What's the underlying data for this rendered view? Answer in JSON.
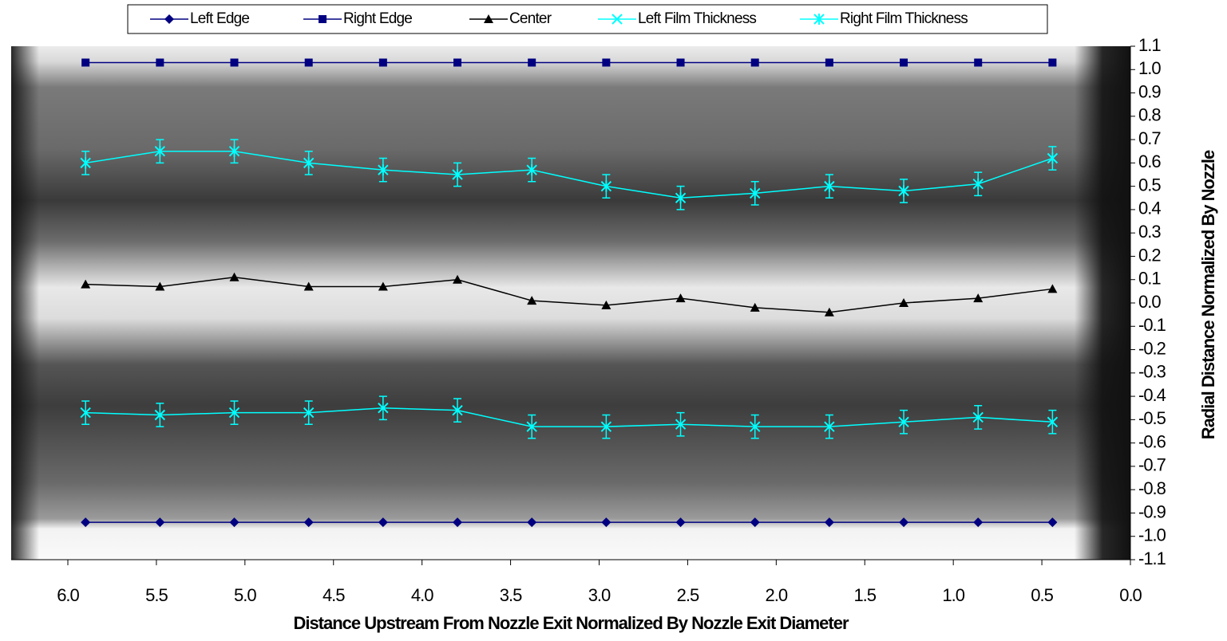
{
  "chart_data": {
    "type": "line",
    "x_label": "Distance Upstream From Nozzle Exit Normalized By Nozzle Exit Diameter",
    "y_label": "Radial Distance Normalized By Nozzle",
    "x": [
      5.9,
      5.48,
      5.06,
      4.64,
      4.22,
      3.8,
      3.38,
      2.96,
      2.54,
      2.12,
      1.7,
      1.28,
      0.86,
      0.44
    ],
    "series": [
      {
        "name": "Left Edge",
        "color": "#000080",
        "marker": "diamond",
        "values": [
          -0.94,
          -0.94,
          -0.94,
          -0.94,
          -0.94,
          -0.94,
          -0.94,
          -0.94,
          -0.94,
          -0.94,
          -0.94,
          -0.94,
          -0.94,
          -0.94
        ]
      },
      {
        "name": "Right Edge",
        "color": "#000080",
        "marker": "square",
        "values": [
          1.03,
          1.03,
          1.03,
          1.03,
          1.03,
          1.03,
          1.03,
          1.03,
          1.03,
          1.03,
          1.03,
          1.03,
          1.03,
          1.03
        ]
      },
      {
        "name": "Center",
        "color": "#000000",
        "marker": "triangle",
        "values": [
          0.08,
          0.07,
          0.11,
          0.07,
          0.07,
          0.1,
          0.01,
          -0.01,
          0.02,
          -0.02,
          -0.04,
          0.0,
          0.02,
          0.06
        ]
      },
      {
        "name": "Left Film Thickness",
        "color": "#00ffff",
        "marker": "x",
        "values": [
          -0.47,
          -0.48,
          -0.47,
          -0.47,
          -0.45,
          -0.46,
          -0.53,
          -0.53,
          -0.52,
          -0.53,
          -0.53,
          -0.51,
          -0.49,
          -0.51
        ],
        "errors": [
          0.05,
          0.05,
          0.05,
          0.05,
          0.05,
          0.05,
          0.05,
          0.05,
          0.05,
          0.05,
          0.05,
          0.05,
          0.05,
          0.05
        ]
      },
      {
        "name": "Right Film Thickness",
        "color": "#00ffff",
        "marker": "asterisk",
        "values": [
          0.6,
          0.65,
          0.65,
          0.6,
          0.57,
          0.55,
          0.57,
          0.5,
          0.45,
          0.47,
          0.5,
          0.48,
          0.51,
          0.62
        ],
        "errors": [
          0.05,
          0.05,
          0.05,
          0.05,
          0.05,
          0.05,
          0.05,
          0.05,
          0.05,
          0.05,
          0.05,
          0.05,
          0.05,
          0.05
        ]
      }
    ],
    "xlim": [
      6.32,
      0
    ],
    "xticks": [
      {
        "value": 6,
        "label": "6.0"
      },
      5.5,
      {
        "value": 5,
        "label": "5.0"
      },
      4.5,
      {
        "value": 4,
        "label": "4.0"
      },
      3.5,
      {
        "value": 3,
        "label": "3.0"
      },
      2.5,
      {
        "value": 2,
        "label": "2.0"
      },
      1.5,
      {
        "value": 1,
        "label": "1.0"
      },
      0.5,
      {
        "value": 0,
        "label": "0.0"
      }
    ],
    "ylim": [
      -1.1,
      1.1
    ],
    "yticks": [
      -1.1,
      {
        "value": -1,
        "label": "-1.0"
      },
      -0.9,
      -0.8,
      -0.7,
      -0.6,
      -0.5,
      -0.4,
      -0.3,
      -0.2,
      -0.1,
      {
        "value": 0,
        "label": "0.0"
      },
      0.1,
      0.2,
      0.3,
      0.4,
      0.5,
      0.6,
      0.7,
      0.8,
      0.9,
      {
        "value": 1,
        "label": "1.0"
      },
      1.1
    ],
    "grid": false
  }
}
